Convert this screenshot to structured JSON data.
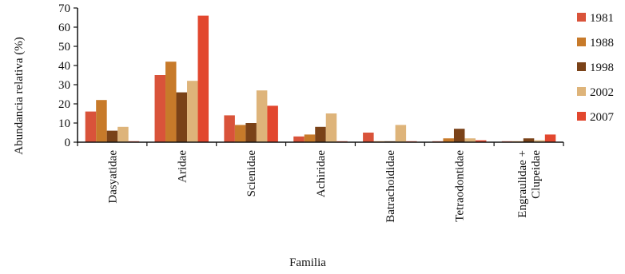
{
  "chart_data": {
    "type": "bar",
    "title": "",
    "xlabel": "Familia",
    "ylabel": "Abundancia relativa  (%)",
    "ylim": [
      0,
      70
    ],
    "yticks": [
      0,
      10,
      20,
      30,
      40,
      50,
      60,
      70
    ],
    "grid": false,
    "legend_position": "right",
    "categories": [
      [
        "Dasyatidae"
      ],
      [
        "Aridae"
      ],
      [
        "Scienidae"
      ],
      [
        "Achiridae"
      ],
      [
        "Batrachoididae"
      ],
      [
        "Tetraodontidae"
      ],
      [
        "Engraulidae +",
        "Clupeidae"
      ]
    ],
    "series": [
      {
        "name": "1981",
        "color": "#d9533a",
        "values": [
          16,
          35,
          14,
          3,
          5,
          0.5,
          0.5
        ]
      },
      {
        "name": "1988",
        "color": "#c77a2a",
        "values": [
          22,
          42,
          9,
          4,
          0.5,
          2,
          0.5
        ]
      },
      {
        "name": "1998",
        "color": "#7a4218",
        "values": [
          6,
          26,
          10,
          8,
          0.5,
          7,
          2
        ]
      },
      {
        "name": "2002",
        "color": "#deb47a",
        "values": [
          8,
          32,
          27,
          15,
          9,
          2,
          1
        ]
      },
      {
        "name": "2007",
        "color": "#e2472e",
        "values": [
          0.5,
          66,
          19,
          0.5,
          0.5,
          1,
          4
        ]
      }
    ]
  }
}
